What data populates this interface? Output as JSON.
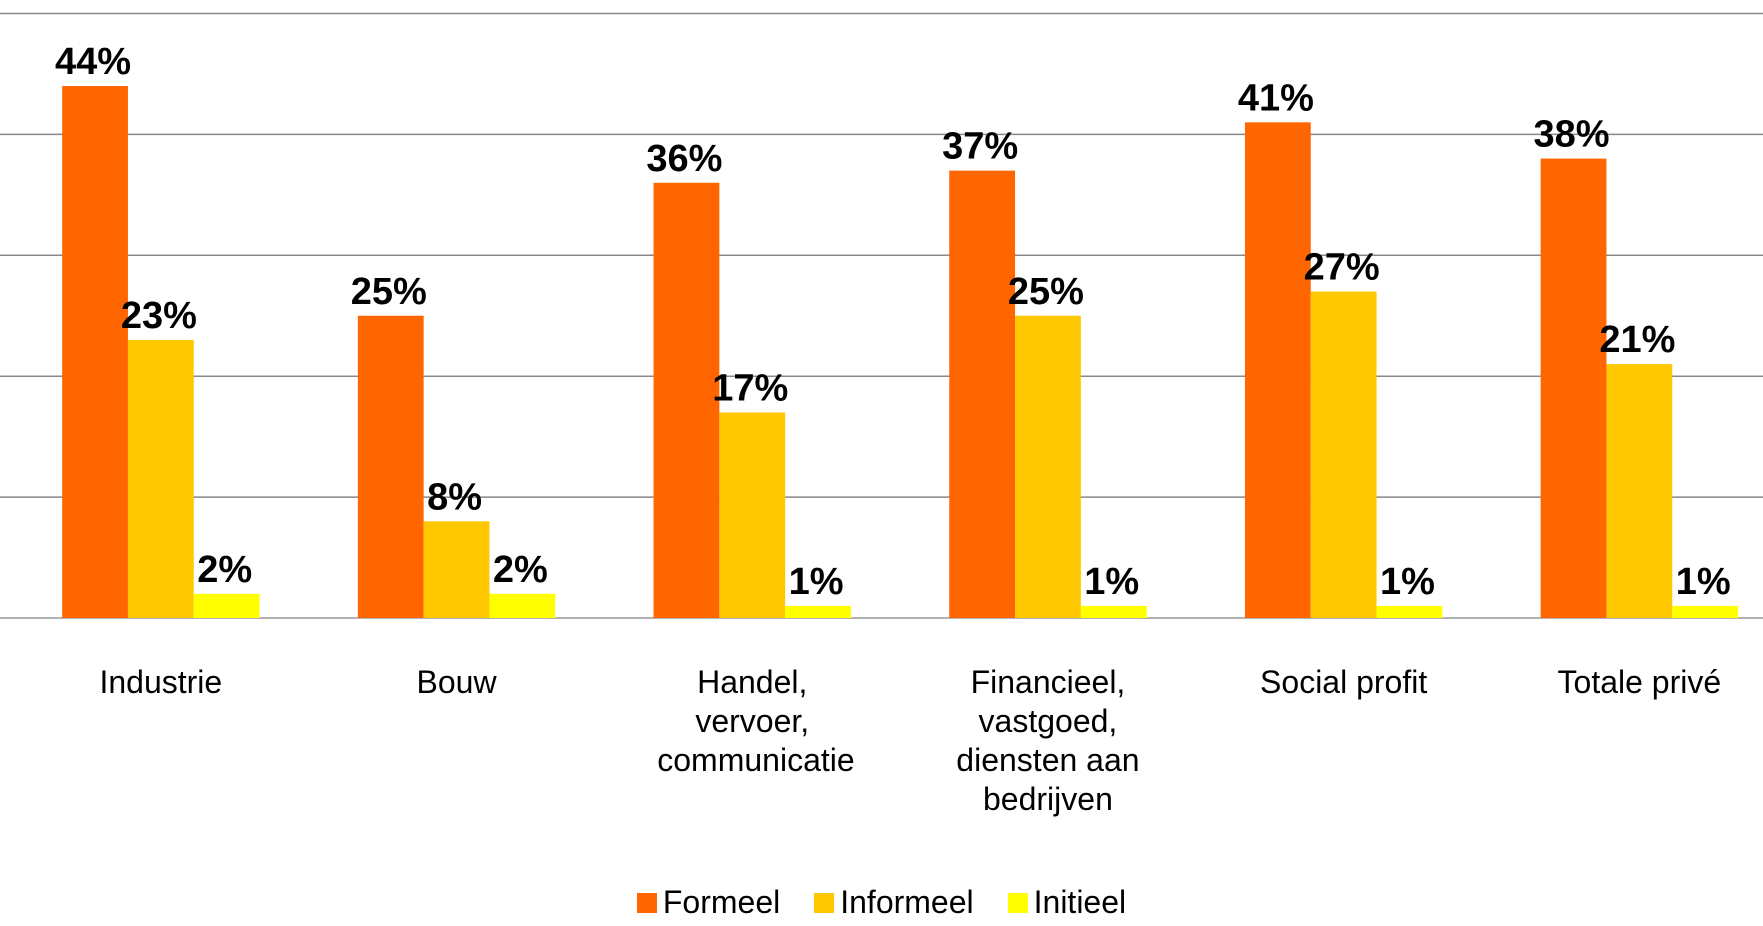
{
  "chart_data": {
    "type": "bar",
    "categories": [
      "Industrie",
      "Bouw",
      "Handel, vervoer, communicatie",
      "Financieel, vastgoed, diensten aan bedrijven",
      "Social profit",
      "Totale privé"
    ],
    "series": [
      {
        "name": "Formeel",
        "color": "#ff6600",
        "values": [
          44,
          25,
          36,
          37,
          41,
          38
        ],
        "value_labels": [
          "44%",
          "25%",
          "36%",
          "37%",
          "41%",
          "38%"
        ]
      },
      {
        "name": "Informeel",
        "color": "#ffc800",
        "values": [
          23,
          8,
          17,
          25,
          27,
          21
        ],
        "value_labels": [
          "23%",
          "8%",
          "17%",
          "25%",
          "27%",
          "21%"
        ]
      },
      {
        "name": "Initieel",
        "color": "#ffff00",
        "values": [
          2,
          2,
          1,
          1,
          1,
          1
        ],
        "value_labels": [
          "2%",
          "2%",
          "1%",
          "1%",
          "1%",
          "1%"
        ]
      }
    ],
    "ylim": [
      0,
      50
    ],
    "yticks": [
      0,
      10,
      20,
      30,
      40,
      50
    ],
    "grid": true
  }
}
